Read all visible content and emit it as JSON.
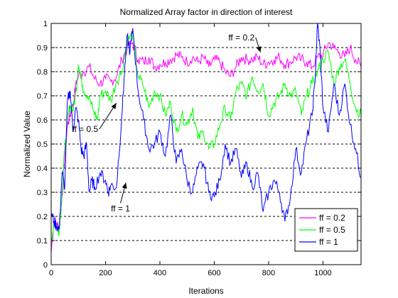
{
  "chart_data": {
    "type": "line",
    "title": "Normalized Array factor in direction of interest",
    "xlabel": "Iterations",
    "ylabel": "Normalized Value",
    "xlim": [
      0,
      1140
    ],
    "ylim": [
      0,
      1
    ],
    "xticks": [
      0,
      200,
      400,
      600,
      800,
      1000
    ],
    "yticks": [
      0,
      0.1,
      0.2,
      0.3,
      0.4,
      0.5,
      0.6,
      0.7,
      0.8,
      0.9,
      1
    ],
    "grid": "horizontal dashed",
    "legend_position": "bottom-right",
    "series": [
      {
        "name": "ff = 0.2",
        "color": "#ff00ff",
        "x": [
          0,
          10,
          20,
          30,
          40,
          50,
          60,
          70,
          80,
          90,
          100,
          120,
          140,
          160,
          180,
          200,
          220,
          240,
          260,
          280,
          300,
          320,
          340,
          360,
          380,
          400,
          420,
          440,
          460,
          480,
          500,
          520,
          540,
          560,
          580,
          600,
          620,
          640,
          660,
          680,
          700,
          720,
          740,
          760,
          780,
          800,
          820,
          840,
          860,
          880,
          900,
          920,
          940,
          960,
          980,
          1000,
          1020,
          1040,
          1060,
          1080,
          1100,
          1120,
          1140
        ],
        "y": [
          0.05,
          0.18,
          0.17,
          0.15,
          0.28,
          0.45,
          0.58,
          0.62,
          0.66,
          0.74,
          0.78,
          0.8,
          0.82,
          0.77,
          0.75,
          0.77,
          0.76,
          0.78,
          0.85,
          0.9,
          0.92,
          0.85,
          0.84,
          0.86,
          0.82,
          0.83,
          0.84,
          0.85,
          0.87,
          0.86,
          0.84,
          0.86,
          0.84,
          0.86,
          0.82,
          0.85,
          0.84,
          0.8,
          0.78,
          0.82,
          0.86,
          0.85,
          0.85,
          0.86,
          0.83,
          0.84,
          0.85,
          0.86,
          0.83,
          0.84,
          0.86,
          0.85,
          0.84,
          0.82,
          0.86,
          0.87,
          0.92,
          0.9,
          0.88,
          0.86,
          0.9,
          0.85,
          0.82
        ]
      },
      {
        "name": "ff = 0.5",
        "color": "#00ff00",
        "x": [
          0,
          10,
          20,
          30,
          40,
          50,
          60,
          70,
          80,
          90,
          100,
          110,
          120,
          140,
          160,
          170,
          180,
          200,
          220,
          240,
          260,
          280,
          300,
          320,
          340,
          360,
          380,
          400,
          420,
          440,
          460,
          480,
          500,
          520,
          540,
          560,
          580,
          600,
          620,
          640,
          660,
          680,
          700,
          720,
          740,
          760,
          780,
          800,
          820,
          840,
          860,
          880,
          900,
          920,
          940,
          960,
          980,
          1000,
          1020,
          1040,
          1060,
          1080,
          1100,
          1120,
          1140
        ],
        "y": [
          0.1,
          0.17,
          0.16,
          0.14,
          0.3,
          0.48,
          0.6,
          0.66,
          0.64,
          0.7,
          0.83,
          0.78,
          0.72,
          0.7,
          0.62,
          0.6,
          0.7,
          0.72,
          0.68,
          0.76,
          0.8,
          0.93,
          0.95,
          0.78,
          0.74,
          0.65,
          0.72,
          0.7,
          0.62,
          0.67,
          0.55,
          0.62,
          0.58,
          0.65,
          0.52,
          0.55,
          0.48,
          0.5,
          0.58,
          0.65,
          0.6,
          0.72,
          0.75,
          0.7,
          0.78,
          0.72,
          0.75,
          0.62,
          0.67,
          0.7,
          0.75,
          0.7,
          0.72,
          0.62,
          0.7,
          0.75,
          0.8,
          0.85,
          0.88,
          0.75,
          0.82,
          0.85,
          0.75,
          0.65,
          0.62
        ]
      },
      {
        "name": "ff = 1",
        "color": "#0000ff",
        "x": [
          0,
          10,
          20,
          30,
          40,
          50,
          60,
          70,
          80,
          90,
          100,
          110,
          120,
          130,
          140,
          150,
          160,
          180,
          200,
          210,
          220,
          240,
          260,
          270,
          280,
          290,
          300,
          320,
          340,
          360,
          380,
          400,
          420,
          440,
          460,
          480,
          500,
          520,
          540,
          560,
          580,
          600,
          620,
          640,
          660,
          680,
          700,
          720,
          740,
          760,
          780,
          800,
          820,
          840,
          860,
          880,
          900,
          920,
          940,
          960,
          970,
          980,
          990,
          1000,
          1020,
          1040,
          1060,
          1080,
          1100,
          1120,
          1140
        ],
        "y": [
          0.22,
          0.18,
          0.16,
          0.15,
          0.38,
          0.32,
          0.68,
          0.72,
          0.55,
          0.65,
          0.6,
          0.48,
          0.45,
          0.5,
          0.3,
          0.35,
          0.32,
          0.38,
          0.35,
          0.3,
          0.33,
          0.32,
          0.62,
          0.8,
          0.95,
          0.88,
          0.98,
          0.72,
          0.6,
          0.48,
          0.5,
          0.55,
          0.45,
          0.62,
          0.42,
          0.48,
          0.35,
          0.3,
          0.4,
          0.42,
          0.3,
          0.28,
          0.35,
          0.5,
          0.42,
          0.48,
          0.36,
          0.42,
          0.32,
          0.38,
          0.22,
          0.3,
          0.35,
          0.3,
          0.18,
          0.28,
          0.48,
          0.38,
          0.52,
          0.62,
          0.75,
          1.0,
          0.88,
          0.65,
          0.55,
          0.75,
          0.62,
          0.75,
          0.58,
          0.48,
          0.36
        ]
      }
    ],
    "annotations": [
      {
        "text": "ff = 0.2",
        "x": 700,
        "y": 0.93,
        "arrow_to": [
          770,
          0.88
        ]
      },
      {
        "text": "ff = 0.5",
        "x": 125,
        "y": 0.55,
        "arrow_to": [
          240,
          0.67
        ]
      },
      {
        "text": "ff = 1",
        "x": 255,
        "y": 0.22,
        "arrow_to": [
          275,
          0.34
        ]
      }
    ]
  }
}
